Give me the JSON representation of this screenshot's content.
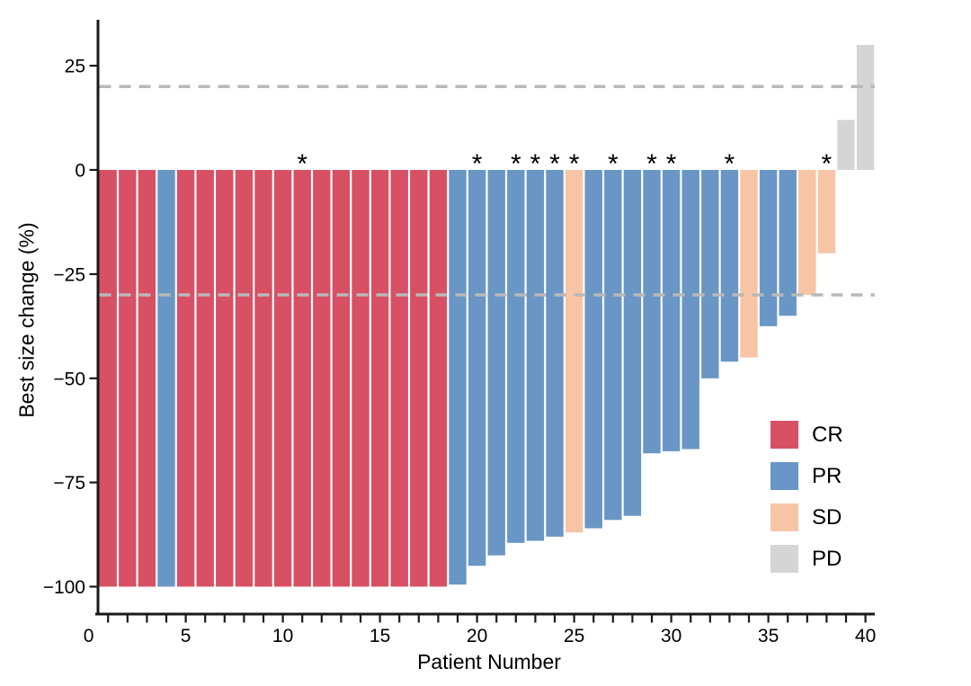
{
  "figure": {
    "background": "#ffffff"
  },
  "styles": {
    "axis_color": "#1a1a1a",
    "text_color": "#000000",
    "reference_line_color": "#b9b9b9"
  },
  "chart_data": {
    "type": "bar",
    "subtype": "waterfall",
    "title": "",
    "xlabel": "Patient Number",
    "ylabel": "Best size change (%)",
    "xlim": [
      0.5,
      40.5
    ],
    "ylim": [
      -107,
      36
    ],
    "grid": false,
    "x_tick_labels": [
      0,
      5,
      10,
      15,
      20,
      25,
      30,
      35,
      40
    ],
    "y_ticks": [
      25,
      0,
      -25,
      -50,
      -75,
      -100
    ],
    "reference_lines": [
      20,
      -30
    ],
    "annotation_symbol": "*",
    "legend_position": "right-inside",
    "legend": [
      {
        "label": "CR",
        "color": "#d85064"
      },
      {
        "label": "PR",
        "color": "#6996c5"
      },
      {
        "label": "SD",
        "color": "#f7c5a5"
      },
      {
        "label": "PD",
        "color": "#d5d5d5"
      }
    ],
    "patients": [
      {
        "patient": 1,
        "value": -100,
        "response": "CR",
        "asterisk": false
      },
      {
        "patient": 2,
        "value": -100,
        "response": "CR",
        "asterisk": false
      },
      {
        "patient": 3,
        "value": -100,
        "response": "CR",
        "asterisk": false
      },
      {
        "patient": 4,
        "value": -100,
        "response": "PR",
        "asterisk": false
      },
      {
        "patient": 5,
        "value": -100,
        "response": "CR",
        "asterisk": false
      },
      {
        "patient": 6,
        "value": -100,
        "response": "CR",
        "asterisk": false
      },
      {
        "patient": 7,
        "value": -100,
        "response": "CR",
        "asterisk": false
      },
      {
        "patient": 8,
        "value": -100,
        "response": "CR",
        "asterisk": false
      },
      {
        "patient": 9,
        "value": -100,
        "response": "CR",
        "asterisk": false
      },
      {
        "patient": 10,
        "value": -100,
        "response": "CR",
        "asterisk": false
      },
      {
        "patient": 11,
        "value": -100,
        "response": "CR",
        "asterisk": true
      },
      {
        "patient": 12,
        "value": -100,
        "response": "CR",
        "asterisk": false
      },
      {
        "patient": 13,
        "value": -100,
        "response": "CR",
        "asterisk": false
      },
      {
        "patient": 14,
        "value": -100,
        "response": "CR",
        "asterisk": false
      },
      {
        "patient": 15,
        "value": -100,
        "response": "CR",
        "asterisk": false
      },
      {
        "patient": 16,
        "value": -100,
        "response": "CR",
        "asterisk": false
      },
      {
        "patient": 17,
        "value": -100,
        "response": "CR",
        "asterisk": false
      },
      {
        "patient": 18,
        "value": -100,
        "response": "CR",
        "asterisk": false
      },
      {
        "patient": 19,
        "value": -99.5,
        "response": "PR",
        "asterisk": false
      },
      {
        "patient": 20,
        "value": -95,
        "response": "PR",
        "asterisk": true
      },
      {
        "patient": 21,
        "value": -92.5,
        "response": "PR",
        "asterisk": false
      },
      {
        "patient": 22,
        "value": -89.5,
        "response": "PR",
        "asterisk": true
      },
      {
        "patient": 23,
        "value": -89,
        "response": "PR",
        "asterisk": true
      },
      {
        "patient": 24,
        "value": -88,
        "response": "PR",
        "asterisk": true
      },
      {
        "patient": 25,
        "value": -87,
        "response": "SD",
        "asterisk": true
      },
      {
        "patient": 26,
        "value": -86,
        "response": "PR",
        "asterisk": false
      },
      {
        "patient": 27,
        "value": -84,
        "response": "PR",
        "asterisk": true
      },
      {
        "patient": 28,
        "value": -83,
        "response": "PR",
        "asterisk": false
      },
      {
        "patient": 29,
        "value": -68,
        "response": "PR",
        "asterisk": true
      },
      {
        "patient": 30,
        "value": -67.5,
        "response": "PR",
        "asterisk": true
      },
      {
        "patient": 31,
        "value": -67,
        "response": "PR",
        "asterisk": false
      },
      {
        "patient": 32,
        "value": -50,
        "response": "PR",
        "asterisk": false
      },
      {
        "patient": 33,
        "value": -46,
        "response": "PR",
        "asterisk": true
      },
      {
        "patient": 34,
        "value": -45,
        "response": "SD",
        "asterisk": false
      },
      {
        "patient": 35,
        "value": -37.5,
        "response": "PR",
        "asterisk": false
      },
      {
        "patient": 36,
        "value": -35,
        "response": "PR",
        "asterisk": false
      },
      {
        "patient": 37,
        "value": -30,
        "response": "SD",
        "asterisk": false
      },
      {
        "patient": 38,
        "value": -20,
        "response": "SD",
        "asterisk": true
      },
      {
        "patient": 39,
        "value": 12,
        "response": "PD",
        "asterisk": false
      },
      {
        "patient": 40,
        "value": 30,
        "response": "PD",
        "asterisk": false
      }
    ]
  }
}
